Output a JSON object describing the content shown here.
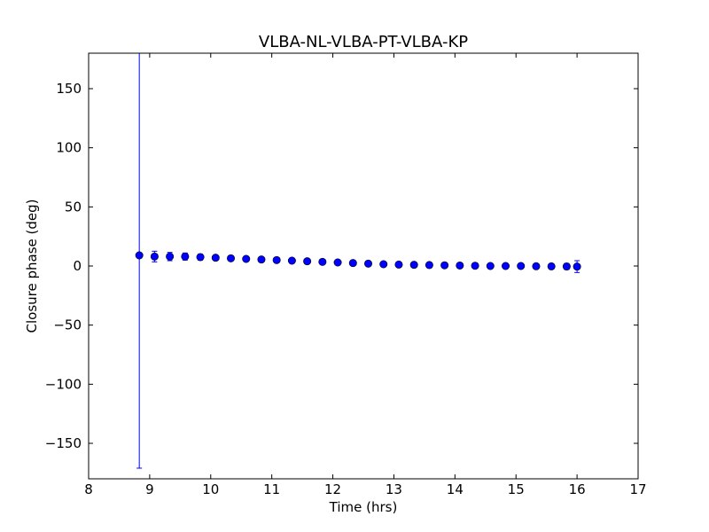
{
  "chart_data": {
    "type": "scatter",
    "title": "VLBA-NL-VLBA-PT-VLBA-KP",
    "xlabel": "Time (hrs)",
    "ylabel": "Closure phase (deg)",
    "xlim": [
      8,
      17
    ],
    "ylim": [
      -180,
      180
    ],
    "xticks": [
      8,
      9,
      10,
      11,
      12,
      13,
      14,
      15,
      16,
      17
    ],
    "xtick_labels": [
      "8",
      "9",
      "10",
      "11",
      "12",
      "13",
      "14",
      "15",
      "16",
      "17"
    ],
    "yticks": [
      -150,
      -100,
      -50,
      0,
      50,
      100,
      150
    ],
    "ytick_labels": [
      "−150",
      "−100",
      "−50",
      "0",
      "50",
      "100",
      "150"
    ],
    "grid": false,
    "marker_color": "#0000ff",
    "series": [
      {
        "x": [
          8.83,
          9.08,
          9.33,
          9.58,
          9.83,
          10.08,
          10.33,
          10.58,
          10.83,
          11.08,
          11.33,
          11.58,
          11.83,
          12.08,
          12.33,
          12.58,
          12.83,
          13.08,
          13.33,
          13.58,
          13.83,
          14.08,
          14.33,
          14.58,
          14.83,
          15.08,
          15.33,
          15.58,
          15.83,
          16.0
        ],
        "y": [
          9,
          8,
          8,
          8,
          7.5,
          7,
          6.5,
          6,
          5.5,
          5,
          4.5,
          4,
          3.5,
          3,
          2.5,
          2,
          1.5,
          1.2,
          1,
          0.8,
          0.6,
          0.4,
          0.2,
          0,
          0,
          0,
          -0.2,
          -0.3,
          -0.4,
          -0.5
        ],
        "yerr": [
          180,
          4.5,
          3.5,
          3,
          2.5,
          2,
          2,
          2,
          2,
          2,
          2,
          2,
          2,
          2,
          2,
          2,
          2,
          2,
          2,
          2,
          2,
          2,
          2,
          2,
          2,
          2,
          2,
          2,
          2.5,
          5
        ]
      }
    ]
  }
}
